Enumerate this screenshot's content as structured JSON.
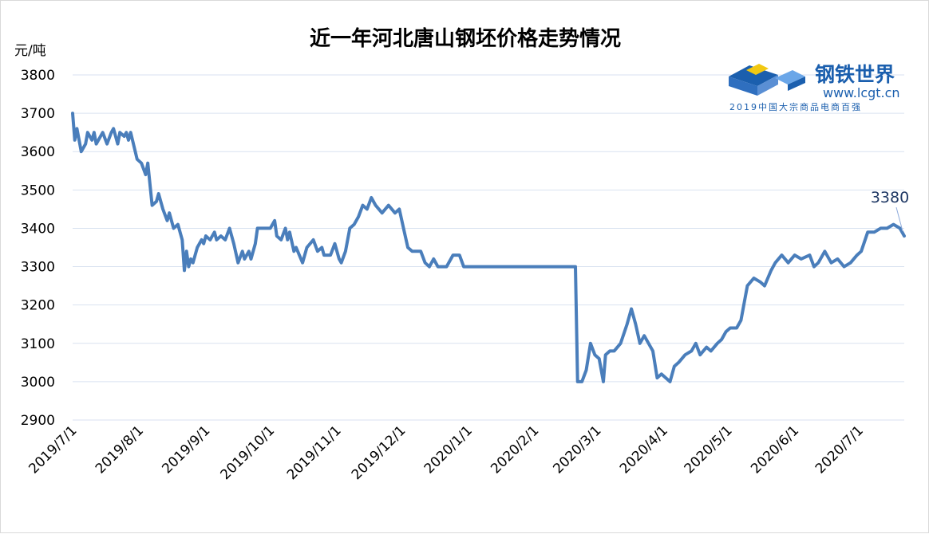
{
  "chart_data": {
    "type": "line",
    "title": "近一年河北唐山钢坯价格走势情况",
    "ylabel": "元/吨",
    "xlabel": "",
    "ylim": [
      2900,
      3800
    ],
    "yticks": [
      2900,
      3000,
      3100,
      3200,
      3300,
      3400,
      3500,
      3600,
      3700,
      3800
    ],
    "x_tick_labels": [
      "2019/7/1",
      "2019/8/1",
      "2019/9/1",
      "2019/10/1",
      "2019/11/1",
      "2019/12/1",
      "2020/1/1",
      "2020/2/1",
      "2020/3/1",
      "2020/4/1",
      "2020/5/1",
      "2020/6/1",
      "2020/7/1"
    ],
    "x_range": [
      "2019/7/1",
      "2020/7/22"
    ],
    "grid": "horizontal",
    "line_color": "#4a7ebb",
    "annotation": {
      "text": "3380",
      "x": "2020/7/22",
      "y": 3380
    },
    "series": [
      {
        "name": "",
        "points": [
          [
            "2019/7/1",
            3700
          ],
          [
            "2019/7/2",
            3630
          ],
          [
            "2019/7/3",
            3660
          ],
          [
            "2019/7/5",
            3600
          ],
          [
            "2019/7/7",
            3620
          ],
          [
            "2019/7/8",
            3650
          ],
          [
            "2019/7/10",
            3630
          ],
          [
            "2019/7/11",
            3650
          ],
          [
            "2019/7/12",
            3620
          ],
          [
            "2019/7/15",
            3650
          ],
          [
            "2019/7/17",
            3620
          ],
          [
            "2019/7/19",
            3650
          ],
          [
            "2019/7/20",
            3660
          ],
          [
            "2019/7/22",
            3620
          ],
          [
            "2019/7/23",
            3650
          ],
          [
            "2019/7/25",
            3640
          ],
          [
            "2019/7/26",
            3650
          ],
          [
            "2019/7/27",
            3630
          ],
          [
            "2019/7/28",
            3650
          ],
          [
            "2019/7/31",
            3580
          ],
          [
            "2019/8/2",
            3570
          ],
          [
            "2019/8/4",
            3540
          ],
          [
            "2019/8/5",
            3570
          ],
          [
            "2019/8/7",
            3460
          ],
          [
            "2019/8/9",
            3470
          ],
          [
            "2019/8/10",
            3490
          ],
          [
            "2019/8/12",
            3450
          ],
          [
            "2019/8/14",
            3420
          ],
          [
            "2019/8/15",
            3440
          ],
          [
            "2019/8/17",
            3400
          ],
          [
            "2019/8/19",
            3410
          ],
          [
            "2019/8/21",
            3370
          ],
          [
            "2019/8/22",
            3290
          ],
          [
            "2019/8/23",
            3340
          ],
          [
            "2019/8/24",
            3300
          ],
          [
            "2019/8/25",
            3320
          ],
          [
            "2019/8/26",
            3310
          ],
          [
            "2019/8/28",
            3350
          ],
          [
            "2019/8/30",
            3370
          ],
          [
            "2019/8/31",
            3360
          ],
          [
            "2019/9/1",
            3380
          ],
          [
            "2019/9/3",
            3370
          ],
          [
            "2019/9/5",
            3390
          ],
          [
            "2019/9/6",
            3370
          ],
          [
            "2019/9/8",
            3380
          ],
          [
            "2019/9/10",
            3370
          ],
          [
            "2019/9/12",
            3400
          ],
          [
            "2019/9/14",
            3360
          ],
          [
            "2019/9/16",
            3310
          ],
          [
            "2019/9/18",
            3340
          ],
          [
            "2019/9/19",
            3320
          ],
          [
            "2019/9/21",
            3340
          ],
          [
            "2019/9/22",
            3320
          ],
          [
            "2019/9/24",
            3360
          ],
          [
            "2019/9/25",
            3400
          ],
          [
            "2019/9/27",
            3400
          ],
          [
            "2019/10/1",
            3400
          ],
          [
            "2019/10/3",
            3420
          ],
          [
            "2019/10/4",
            3380
          ],
          [
            "2019/10/6",
            3370
          ],
          [
            "2019/10/8",
            3400
          ],
          [
            "2019/10/9",
            3370
          ],
          [
            "2019/10/10",
            3390
          ],
          [
            "2019/10/12",
            3340
          ],
          [
            "2019/10/13",
            3350
          ],
          [
            "2019/10/16",
            3310
          ],
          [
            "2019/10/18",
            3350
          ],
          [
            "2019/10/21",
            3370
          ],
          [
            "2019/10/23",
            3340
          ],
          [
            "2019/10/25",
            3350
          ],
          [
            "2019/10/26",
            3330
          ],
          [
            "2019/10/29",
            3330
          ],
          [
            "2019/10/31",
            3360
          ],
          [
            "2019/11/2",
            3320
          ],
          [
            "2019/11/3",
            3310
          ],
          [
            "2019/11/5",
            3340
          ],
          [
            "2019/11/7",
            3400
          ],
          [
            "2019/11/9",
            3410
          ],
          [
            "2019/11/11",
            3430
          ],
          [
            "2019/11/13",
            3460
          ],
          [
            "2019/11/15",
            3450
          ],
          [
            "2019/11/17",
            3480
          ],
          [
            "2019/11/19",
            3460
          ],
          [
            "2019/11/22",
            3440
          ],
          [
            "2019/11/25",
            3460
          ],
          [
            "2019/11/28",
            3440
          ],
          [
            "2019/11/30",
            3450
          ],
          [
            "2019/12/2",
            3400
          ],
          [
            "2019/12/4",
            3350
          ],
          [
            "2019/12/6",
            3340
          ],
          [
            "2019/12/10",
            3340
          ],
          [
            "2019/12/12",
            3310
          ],
          [
            "2019/12/14",
            3300
          ],
          [
            "2019/12/16",
            3320
          ],
          [
            "2019/12/18",
            3300
          ],
          [
            "2019/12/22",
            3300
          ],
          [
            "2019/12/25",
            3330
          ],
          [
            "2019/12/28",
            3330
          ],
          [
            "2019/12/30",
            3300
          ],
          [
            "2020/1/10",
            3300
          ],
          [
            "2020/1/20",
            3300
          ],
          [
            "2020/1/31",
            3300
          ],
          [
            "2020/2/10",
            3300
          ],
          [
            "2020/2/20",
            3300
          ],
          [
            "2020/2/21",
            3000
          ],
          [
            "2020/2/23",
            3000
          ],
          [
            "2020/2/25",
            3030
          ],
          [
            "2020/2/27",
            3100
          ],
          [
            "2020/2/29",
            3070
          ],
          [
            "2020/3/2",
            3060
          ],
          [
            "2020/3/4",
            3000
          ],
          [
            "2020/3/5",
            3070
          ],
          [
            "2020/3/7",
            3080
          ],
          [
            "2020/3/9",
            3080
          ],
          [
            "2020/3/12",
            3100
          ],
          [
            "2020/3/15",
            3150
          ],
          [
            "2020/3/17",
            3190
          ],
          [
            "2020/3/19",
            3150
          ],
          [
            "2020/3/21",
            3100
          ],
          [
            "2020/3/23",
            3120
          ],
          [
            "2020/3/25",
            3100
          ],
          [
            "2020/3/27",
            3080
          ],
          [
            "2020/3/29",
            3010
          ],
          [
            "2020/3/31",
            3020
          ],
          [
            "2020/4/4",
            3000
          ],
          [
            "2020/4/6",
            3040
          ],
          [
            "2020/4/8",
            3050
          ],
          [
            "2020/4/11",
            3070
          ],
          [
            "2020/4/14",
            3080
          ],
          [
            "2020/4/16",
            3100
          ],
          [
            "2020/4/18",
            3070
          ],
          [
            "2020/4/21",
            3090
          ],
          [
            "2020/4/23",
            3080
          ],
          [
            "2020/4/26",
            3100
          ],
          [
            "2020/4/28",
            3110
          ],
          [
            "2020/4/30",
            3130
          ],
          [
            "2020/5/2",
            3140
          ],
          [
            "2020/5/5",
            3140
          ],
          [
            "2020/5/7",
            3160
          ],
          [
            "2020/5/10",
            3250
          ],
          [
            "2020/5/13",
            3270
          ],
          [
            "2020/5/16",
            3260
          ],
          [
            "2020/5/18",
            3250
          ],
          [
            "2020/5/21",
            3290
          ],
          [
            "2020/5/23",
            3310
          ],
          [
            "2020/5/26",
            3330
          ],
          [
            "2020/5/29",
            3310
          ],
          [
            "2020/6/1",
            3330
          ],
          [
            "2020/6/4",
            3320
          ],
          [
            "2020/6/8",
            3330
          ],
          [
            "2020/6/10",
            3300
          ],
          [
            "2020/6/12",
            3310
          ],
          [
            "2020/6/15",
            3340
          ],
          [
            "2020/6/18",
            3310
          ],
          [
            "2020/6/21",
            3320
          ],
          [
            "2020/6/24",
            3300
          ],
          [
            "2020/6/27",
            3310
          ],
          [
            "2020/6/30",
            3330
          ],
          [
            "2020/7/2",
            3340
          ],
          [
            "2020/7/5",
            3390
          ],
          [
            "2020/7/8",
            3390
          ],
          [
            "2020/7/11",
            3400
          ],
          [
            "2020/7/14",
            3400
          ],
          [
            "2020/7/17",
            3410
          ],
          [
            "2020/7/20",
            3400
          ],
          [
            "2020/7/22",
            3380
          ]
        ]
      }
    ]
  },
  "logo": {
    "name": "钢铁世界",
    "url": "www.lcgt.cn",
    "tagline": "2019中国大宗商品电商百强"
  }
}
